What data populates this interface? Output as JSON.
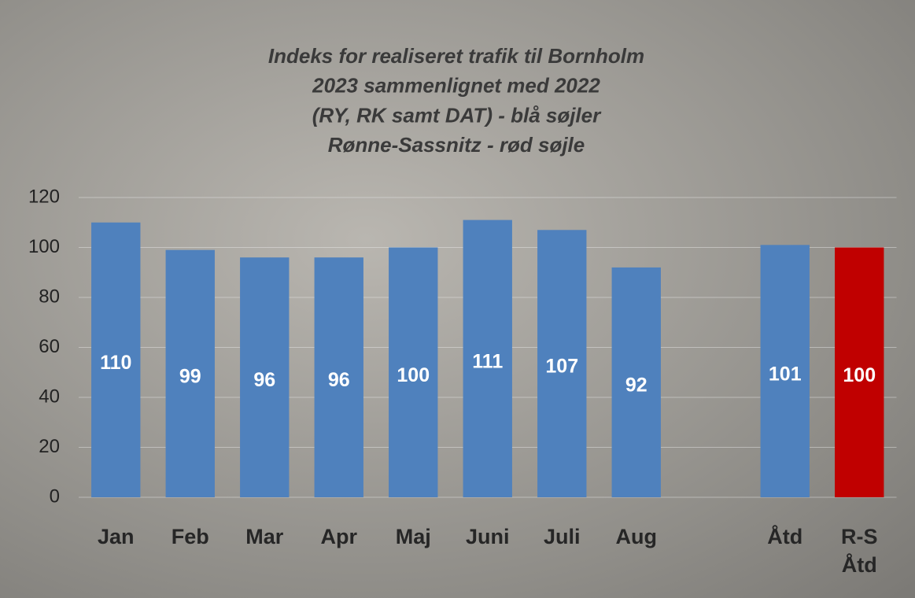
{
  "chart_data": {
    "type": "bar",
    "title": [
      "Indeks for realiseret trafik til Bornholm",
      "2023 sammenlignet med 2022",
      "(RY, RK samt DAT) - blå søjler",
      "Rønne-Sassnitz - rød søjle"
    ],
    "categories": [
      "Jan",
      "Feb",
      "Mar",
      "Apr",
      "Maj",
      "Juni",
      "Juli",
      "Aug",
      null,
      "Åtd",
      "R-S Åtd"
    ],
    "values": [
      110,
      99,
      96,
      96,
      100,
      111,
      107,
      92,
      null,
      101,
      100
    ],
    "colors": [
      "#4f81bd",
      "#4f81bd",
      "#4f81bd",
      "#4f81bd",
      "#4f81bd",
      "#4f81bd",
      "#4f81bd",
      "#4f81bd",
      null,
      "#4f81bd",
      "#c00000"
    ],
    "ylim": [
      0,
      120
    ],
    "yticks": [
      0,
      20,
      40,
      60,
      80,
      100,
      120
    ],
    "grid": true
  }
}
